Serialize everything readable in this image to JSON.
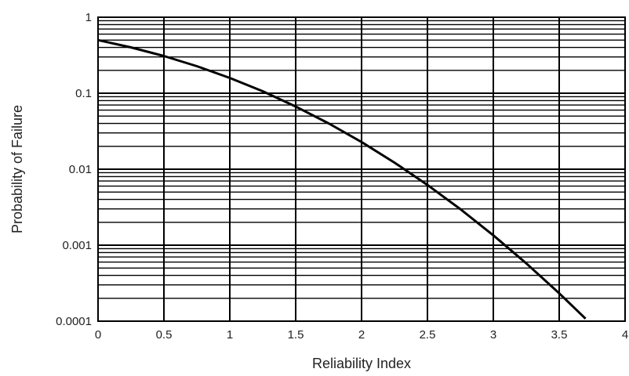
{
  "chart_data": {
    "type": "line",
    "title": "",
    "xlabel": "Reliability Index",
    "ylabel": "Probability of Failure",
    "xlim": [
      0,
      4
    ],
    "ylim": [
      0.0001,
      1
    ],
    "y_scale": "log",
    "grid": true,
    "x_ticks": [
      "0",
      "0.5",
      "1",
      "1.5",
      "2",
      "2.5",
      "3",
      "3.5",
      "4"
    ],
    "y_ticks": [
      "1",
      "0.1",
      "0.01",
      "0.001",
      "0.0001"
    ],
    "series": [
      {
        "x": [
          0,
          0.25,
          0.5,
          0.75,
          1,
          1.25,
          1.5,
          1.75,
          2,
          2.25,
          2.5,
          2.75,
          3,
          3.25,
          3.5,
          3.7
        ],
        "values": [
          0.5,
          0.401,
          0.309,
          0.227,
          0.159,
          0.106,
          0.0668,
          0.0401,
          0.0228,
          0.0122,
          0.00621,
          0.00298,
          0.00135,
          0.000577,
          0.000233,
          0.000108
        ],
        "color": "#000000"
      }
    ]
  }
}
